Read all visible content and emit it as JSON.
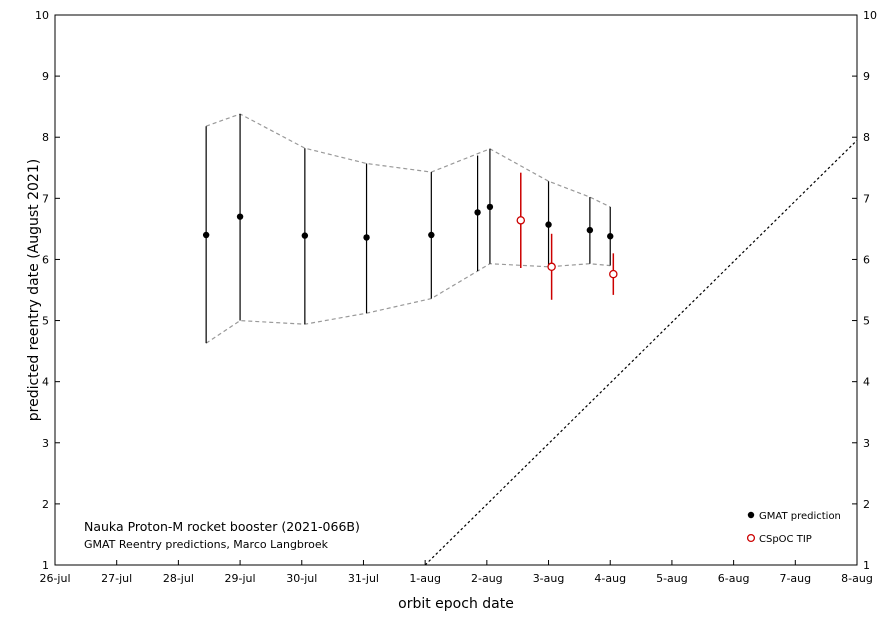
{
  "chart_data": {
    "type": "scatter",
    "xlabel": "orbit epoch date",
    "ylabel": "predicted  reentry  date (August 2021)",
    "x_ticks": [
      {
        "value": 26,
        "label": "26-jul"
      },
      {
        "value": 27,
        "label": "27-jul"
      },
      {
        "value": 28,
        "label": "28-jul"
      },
      {
        "value": 29,
        "label": "29-jul"
      },
      {
        "value": 30,
        "label": "30-jul"
      },
      {
        "value": 31,
        "label": "31-jul"
      },
      {
        "value": 32,
        "label": "1-aug"
      },
      {
        "value": 33,
        "label": "2-aug"
      },
      {
        "value": 34,
        "label": "3-aug"
      },
      {
        "value": 35,
        "label": "4-aug"
      },
      {
        "value": 36,
        "label": "5-aug"
      },
      {
        "value": 37,
        "label": "6-aug"
      },
      {
        "value": 38,
        "label": "7-aug"
      },
      {
        "value": 39,
        "label": "8-aug"
      }
    ],
    "y_ticks": [
      1,
      2,
      3,
      4,
      5,
      6,
      7,
      8,
      9,
      10
    ],
    "xlim": [
      26,
      39
    ],
    "ylim": [
      1,
      10
    ],
    "annotation": {
      "title": "Nauka Proton-M rocket booster (2021-066B)",
      "subtitle": "GMAT Reentry predictions, Marco Langbroek"
    },
    "series": [
      {
        "name": "GMAT prediction",
        "color": "#000000",
        "marker": "filled-circle",
        "points": [
          {
            "x": 28.45,
            "y": 6.4,
            "low": 4.63,
            "high": 8.18
          },
          {
            "x": 29.0,
            "y": 6.7,
            "low": 5.0,
            "high": 8.38
          },
          {
            "x": 30.05,
            "y": 6.39,
            "low": 4.94,
            "high": 7.82
          },
          {
            "x": 31.05,
            "y": 6.36,
            "low": 5.12,
            "high": 7.57
          },
          {
            "x": 32.1,
            "y": 6.4,
            "low": 5.36,
            "high": 7.43
          },
          {
            "x": 32.85,
            "y": 6.77,
            "low": 5.81,
            "high": 7.7
          },
          {
            "x": 33.05,
            "y": 6.86,
            "low": 5.93,
            "high": 7.81
          },
          {
            "x": 34.0,
            "y": 6.57,
            "low": 5.88,
            "high": 7.28
          },
          {
            "x": 34.67,
            "y": 6.48,
            "low": 5.93,
            "high": 7.02
          },
          {
            "x": 35.0,
            "y": 6.38,
            "low": 5.9,
            "high": 6.86
          }
        ]
      },
      {
        "name": "CSpOC TIP",
        "color": "#cc0000",
        "marker": "open-circle",
        "points": [
          {
            "x": 33.55,
            "y": 6.64,
            "low": 5.86,
            "high": 7.42
          },
          {
            "x": 34.05,
            "y": 5.88,
            "low": 5.34,
            "high": 6.42
          },
          {
            "x": 35.05,
            "y": 5.76,
            "low": 5.42,
            "high": 6.1
          }
        ]
      }
    ],
    "envelope": {
      "style": "dashed",
      "color": "#999999",
      "upper": [
        [
          28.45,
          8.18
        ],
        [
          29.0,
          8.38
        ],
        [
          30.05,
          7.82
        ],
        [
          31.05,
          7.57
        ],
        [
          32.1,
          7.43
        ],
        [
          33.05,
          7.81
        ],
        [
          34.0,
          7.28
        ],
        [
          34.67,
          7.02
        ],
        [
          35.0,
          6.86
        ]
      ],
      "lower": [
        [
          28.45,
          4.63
        ],
        [
          29.0,
          5.0
        ],
        [
          30.05,
          4.94
        ],
        [
          31.05,
          5.12
        ],
        [
          32.1,
          5.36
        ],
        [
          33.05,
          5.93
        ],
        [
          34.0,
          5.88
        ],
        [
          34.67,
          5.93
        ],
        [
          35.0,
          5.9
        ]
      ]
    },
    "reference_line": {
      "style": "dotted",
      "color": "#000000",
      "points": [
        [
          32,
          1
        ],
        [
          39,
          7.95
        ]
      ]
    },
    "legend": {
      "position": "bottom-right"
    },
    "grid": false
  }
}
